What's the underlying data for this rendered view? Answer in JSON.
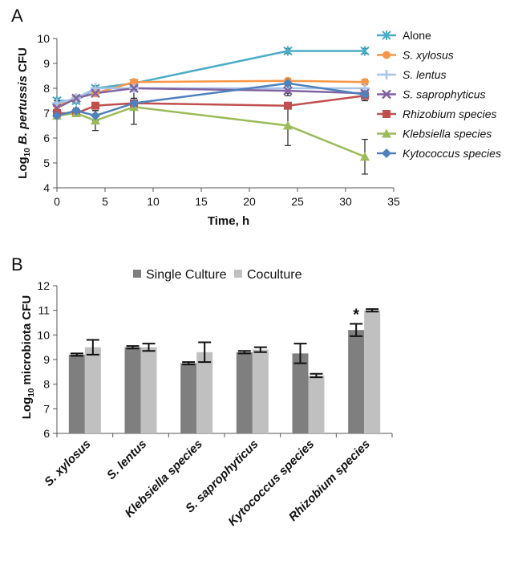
{
  "chart_data": [
    {
      "panel": "A",
      "type": "line",
      "xlabel": "Time, h",
      "ylabel": "Log10 B. pertussis CFU",
      "ylabel_parts": {
        "base": "Log",
        "sub": "10",
        "species": "B. pertussis",
        "unit": "CFU"
      },
      "xlim": [
        0,
        35
      ],
      "ylim": [
        4,
        10
      ],
      "xticks": [
        0,
        5,
        10,
        15,
        20,
        25,
        30,
        35
      ],
      "yticks": [
        4,
        5,
        6,
        7,
        8,
        9,
        10
      ],
      "grid": false,
      "legend_position": "right",
      "x": [
        0,
        2,
        4,
        8,
        24,
        32
      ],
      "series": [
        {
          "name": "Alone",
          "italic": false,
          "color": "#4bacc6",
          "marker": "asterisk",
          "values": [
            7.5,
            7.5,
            8.0,
            8.2,
            9.5,
            9.5
          ],
          "errors": [
            0.1,
            0.1,
            0.1,
            0.1,
            0.1,
            0.1
          ]
        },
        {
          "name": "S. xylosus",
          "italic": true,
          "color": "#f79646",
          "marker": "circle",
          "values": [
            7.3,
            7.6,
            7.8,
            8.25,
            8.3,
            8.25
          ],
          "errors": [
            0.1,
            0.1,
            0.1,
            0.1,
            0.1,
            0.1
          ]
        },
        {
          "name": "S. lentus",
          "italic": true,
          "color": "#a8c4e8",
          "marker": "plus",
          "values": [
            7.4,
            7.6,
            8.0,
            8.0,
            8.0,
            8.0
          ],
          "errors": [
            0.1,
            0.1,
            0.1,
            0.1,
            0.2,
            0.2
          ]
        },
        {
          "name": "S. saprophyticus",
          "italic": true,
          "color": "#8064a2",
          "marker": "x",
          "values": [
            7.2,
            7.6,
            7.8,
            8.0,
            7.9,
            7.8
          ],
          "errors": [
            0.1,
            0.1,
            0.1,
            0.1,
            0.2,
            0.2
          ]
        },
        {
          "name": "Rhizobium species",
          "italic": true,
          "color": "#c0504d",
          "marker": "square",
          "values": [
            7.0,
            7.0,
            7.3,
            7.4,
            7.3,
            7.7
          ],
          "errors": [
            0.1,
            0.1,
            0.1,
            0.1,
            0.1,
            0.2
          ]
        },
        {
          "name": "Klebsiella species",
          "italic": true,
          "color": "#9bbb59",
          "marker": "triangle",
          "values": [
            6.9,
            7.0,
            6.7,
            7.25,
            6.5,
            5.25
          ],
          "errors": [
            0.1,
            0.1,
            0.4,
            0.7,
            0.8,
            0.7
          ]
        },
        {
          "name": "Kytococcus species",
          "italic": true,
          "color": "#4f81bd",
          "marker": "diamond",
          "values": [
            6.9,
            7.1,
            6.9,
            7.4,
            8.2,
            7.75
          ],
          "errors": [
            0.1,
            0.1,
            0.2,
            0.2,
            0.2,
            0.1
          ]
        }
      ]
    },
    {
      "panel": "B",
      "type": "bar",
      "ylabel": "Log10 microbiota CFU",
      "ylabel_parts": {
        "base": "Log",
        "sub": "10",
        "rest": "microbiota CFU"
      },
      "ylim": [
        6,
        12
      ],
      "yticks": [
        6,
        7,
        8,
        9,
        10,
        11,
        12
      ],
      "grid": false,
      "legend_position": "top",
      "categories": [
        "S. xylosus",
        "S. lentus",
        "Klebsiella species",
        "S. saprophyticus",
        "Kytococcus species",
        "Rhizobium species"
      ],
      "series": [
        {
          "name": "Single Culture",
          "color": "#7f7f7f",
          "values": [
            9.2,
            9.5,
            8.85,
            9.3,
            9.25,
            10.2
          ],
          "errors": [
            0.05,
            0.05,
            0.05,
            0.05,
            0.4,
            0.25
          ]
        },
        {
          "name": "Coculture",
          "color": "#c0c0c0",
          "values": [
            9.5,
            9.5,
            9.3,
            9.4,
            8.35,
            11.0
          ],
          "errors": [
            0.3,
            0.15,
            0.4,
            0.1,
            0.07,
            0.05
          ]
        }
      ],
      "annotations": [
        {
          "text": "*",
          "category": "Rhizobium species"
        }
      ]
    }
  ]
}
